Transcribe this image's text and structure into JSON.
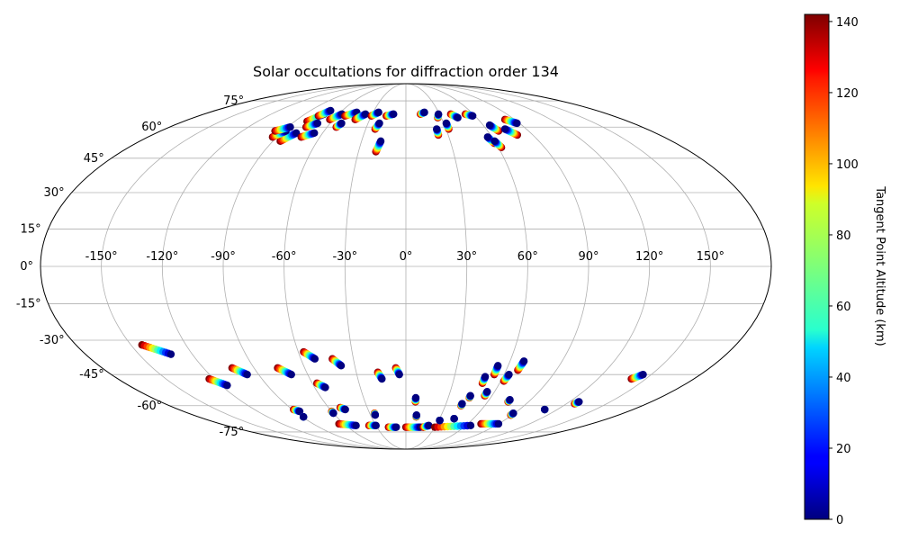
{
  "chart_data": {
    "type": "scatter",
    "projection": "mollweide",
    "title": "Solar occultations for diffraction order 134",
    "x_ticks": [
      {
        "value": -150,
        "label": "-150°"
      },
      {
        "value": -120,
        "label": "-120°"
      },
      {
        "value": -90,
        "label": "-90°"
      },
      {
        "value": -60,
        "label": "-60°"
      },
      {
        "value": -30,
        "label": "-30°"
      },
      {
        "value": 0,
        "label": "0°"
      },
      {
        "value": 30,
        "label": "30°"
      },
      {
        "value": 60,
        "label": "60°"
      },
      {
        "value": 90,
        "label": "90°"
      },
      {
        "value": 120,
        "label": "120°"
      },
      {
        "value": 150,
        "label": "150°"
      }
    ],
    "y_ticks": [
      {
        "value": 75,
        "label": "75°"
      },
      {
        "value": 60,
        "label": "60°"
      },
      {
        "value": 45,
        "label": "45°"
      },
      {
        "value": 30,
        "label": "30°"
      },
      {
        "value": 15,
        "label": "15°"
      },
      {
        "value": 0,
        "label": "0°"
      },
      {
        "value": -15,
        "label": "-15°"
      },
      {
        "value": -30,
        "label": "-30°"
      },
      {
        "value": -45,
        "label": "-45°"
      },
      {
        "value": -60,
        "label": "-60°"
      },
      {
        "value": -75,
        "label": "-75°"
      }
    ],
    "colorbar": {
      "label": "Tangent Point Altitude (km)",
      "min": 0,
      "max": 142,
      "colormap": "jet",
      "ticks": [
        {
          "value": 0,
          "label": "0"
        },
        {
          "value": 20,
          "label": "20"
        },
        {
          "value": 40,
          "label": "40"
        },
        {
          "value": 60,
          "label": "60"
        },
        {
          "value": 80,
          "label": "80"
        },
        {
          "value": 100,
          "label": "100"
        },
        {
          "value": 120,
          "label": "120"
        },
        {
          "value": 140,
          "label": "140"
        }
      ]
    },
    "occultation_tracks": [
      {
        "lon_start": -80,
        "lat_start": 63,
        "lon_end": -73,
        "lat_end": 67
      },
      {
        "lon_start": -76,
        "lat_start": 66,
        "lon_end": -71,
        "lat_end": 69
      },
      {
        "lon_start": -76,
        "lat_start": 60,
        "lon_end": -70,
        "lat_end": 62
      },
      {
        "lon_start": -85,
        "lat_start": 53,
        "lon_end": -79,
        "lat_end": 57
      },
      {
        "lon_start": -93,
        "lat_start": 55,
        "lon_end": -88,
        "lat_end": 58
      },
      {
        "lon_start": -96,
        "lat_start": 58,
        "lon_end": -88,
        "lat_end": 60
      },
      {
        "lon_start": -73,
        "lat_start": 55,
        "lon_end": -66,
        "lat_end": 57
      },
      {
        "lon_start": -63,
        "lat_start": 64,
        "lon_end": -57,
        "lat_end": 67
      },
      {
        "lon_start": -53,
        "lat_start": 66,
        "lon_end": -45,
        "lat_end": 68
      },
      {
        "lon_start": -42,
        "lat_start": 64,
        "lon_end": -36,
        "lat_end": 67
      },
      {
        "lon_start": -30,
        "lat_start": 66,
        "lon_end": -25,
        "lat_end": 68
      },
      {
        "lon_start": -17,
        "lat_start": 66,
        "lon_end": -11,
        "lat_end": 67
      },
      {
        "lon_start": -53,
        "lat_start": 60,
        "lon_end": -51,
        "lat_end": 62
      },
      {
        "lon_start": -23,
        "lat_start": 59,
        "lon_end": -21,
        "lat_end": 62
      },
      {
        "lon_start": -19,
        "lat_start": 48,
        "lon_end": -17,
        "lat_end": 53
      },
      {
        "lon_start": 13,
        "lat_start": 67,
        "lon_end": 17,
        "lat_end": 68
      },
      {
        "lon_start": 23,
        "lat_start": 56,
        "lon_end": 23,
        "lat_end": 59
      },
      {
        "lon_start": 27,
        "lat_start": 65,
        "lon_end": 29,
        "lat_end": 67
      },
      {
        "lon_start": 32,
        "lat_start": 59,
        "lon_end": 32,
        "lat_end": 62
      },
      {
        "lon_start": 40,
        "lat_start": 67,
        "lon_end": 44,
        "lat_end": 65
      },
      {
        "lon_start": 53,
        "lat_start": 67,
        "lon_end": 58,
        "lat_end": 66
      },
      {
        "lon_start": 59,
        "lat_start": 52,
        "lon_end": 57,
        "lat_end": 55
      },
      {
        "lon_start": 62,
        "lat_start": 50,
        "lon_end": 60,
        "lat_end": 53
      },
      {
        "lon_start": 68,
        "lat_start": 58,
        "lon_end": 65,
        "lat_end": 61
      },
      {
        "lon_start": 79,
        "lat_start": 56,
        "lon_end": 74,
        "lat_end": 59
      },
      {
        "lon_start": 82,
        "lat_start": 64,
        "lon_end": 88,
        "lat_end": 62
      },
      {
        "lon_start": -144,
        "lat_start": -32,
        "lon_end": -132,
        "lat_end": -36
      },
      {
        "lon_start": -123,
        "lat_start": -47,
        "lon_end": -116,
        "lat_end": -50
      },
      {
        "lon_start": -103,
        "lat_start": -42,
        "lon_end": -97,
        "lat_end": -45
      },
      {
        "lon_start": -76,
        "lat_start": -42,
        "lon_end": -70,
        "lat_end": -45
      },
      {
        "lon_start": -57,
        "lat_start": -35,
        "lon_end": -52,
        "lat_end": -38
      },
      {
        "lon_start": -42,
        "lat_start": -38,
        "lon_end": -38,
        "lat_end": -41
      },
      {
        "lon_start": -57,
        "lat_start": -49,
        "lon_end": -53,
        "lat_end": -51
      },
      {
        "lon_start": -17,
        "lat_start": -44,
        "lon_end": -15,
        "lat_end": -47
      },
      {
        "lon_start": -6,
        "lat_start": -42,
        "lon_end": -4,
        "lat_end": -45
      },
      {
        "lon_start": -89,
        "lat_start": -62,
        "lon_end": -86,
        "lat_end": -63
      },
      {
        "lon_start": -60,
        "lat_start": -63,
        "lon_end": -60,
        "lat_end": -64
      },
      {
        "lon_start": -51,
        "lat_start": -61,
        "lon_end": -48,
        "lat_end": -62
      },
      {
        "lon_start": -26,
        "lat_start": -64,
        "lon_end": -26,
        "lat_end": -65
      },
      {
        "lon_start": -89,
        "lat_start": -66,
        "lon_end": -89,
        "lat_end": -66
      },
      {
        "lon_start": -65,
        "lat_start": -70,
        "lon_end": -50,
        "lat_end": -71
      },
      {
        "lon_start": -37,
        "lat_start": -71,
        "lon_end": -30,
        "lat_end": -71
      },
      {
        "lon_start": -18,
        "lat_start": -72,
        "lon_end": -10,
        "lat_end": -72
      },
      {
        "lon_start": 0,
        "lat_start": -72,
        "lon_end": 15,
        "lat_end": -72
      },
      {
        "lon_start": 18,
        "lat_start": -72,
        "lon_end": 23,
        "lat_end": -71
      },
      {
        "lon_start": 30,
        "lat_start": -72,
        "lon_end": 65,
        "lat_end": -71
      },
      {
        "lon_start": 73,
        "lat_start": -70,
        "lon_end": 90,
        "lat_end": -70
      },
      {
        "lon_start": 7,
        "lat_start": -58,
        "lon_end": 7,
        "lat_end": -56
      },
      {
        "lon_start": 9,
        "lat_start": -66,
        "lon_end": 9,
        "lat_end": -65
      },
      {
        "lon_start": 31,
        "lat_start": -68,
        "lon_end": 31,
        "lat_end": -68
      },
      {
        "lon_start": 43,
        "lat_start": -67,
        "lon_end": 43,
        "lat_end": -67
      },
      {
        "lon_start": 42,
        "lat_start": -60,
        "lon_end": 42,
        "lat_end": -59
      },
      {
        "lon_start": 45,
        "lat_start": -56,
        "lon_end": 45,
        "lat_end": -55
      },
      {
        "lon_start": 49,
        "lat_start": -49,
        "lon_end": 49,
        "lat_end": -46
      },
      {
        "lon_start": 54,
        "lat_start": -45,
        "lon_end": 54,
        "lat_end": -41
      },
      {
        "lon_start": 55,
        "lat_start": -55,
        "lon_end": 55,
        "lat_end": -53
      },
      {
        "lon_start": 62,
        "lat_start": -48,
        "lon_end": 63,
        "lat_end": -45
      },
      {
        "lon_start": 67,
        "lat_start": -43,
        "lon_end": 68,
        "lat_end": -39
      },
      {
        "lon_start": 75,
        "lat_start": -58,
        "lon_end": 75,
        "lat_end": -57
      },
      {
        "lon_start": 89,
        "lat_start": -65,
        "lon_end": 89,
        "lat_end": -64
      },
      {
        "lon_start": 110,
        "lat_start": -62,
        "lon_end": 110,
        "lat_end": -62
      },
      {
        "lon_start": 126,
        "lat_start": -59,
        "lon_end": 127,
        "lat_end": -58
      },
      {
        "lon_start": 141,
        "lat_start": -47,
        "lon_end": 145,
        "lat_end": -45
      }
    ]
  }
}
